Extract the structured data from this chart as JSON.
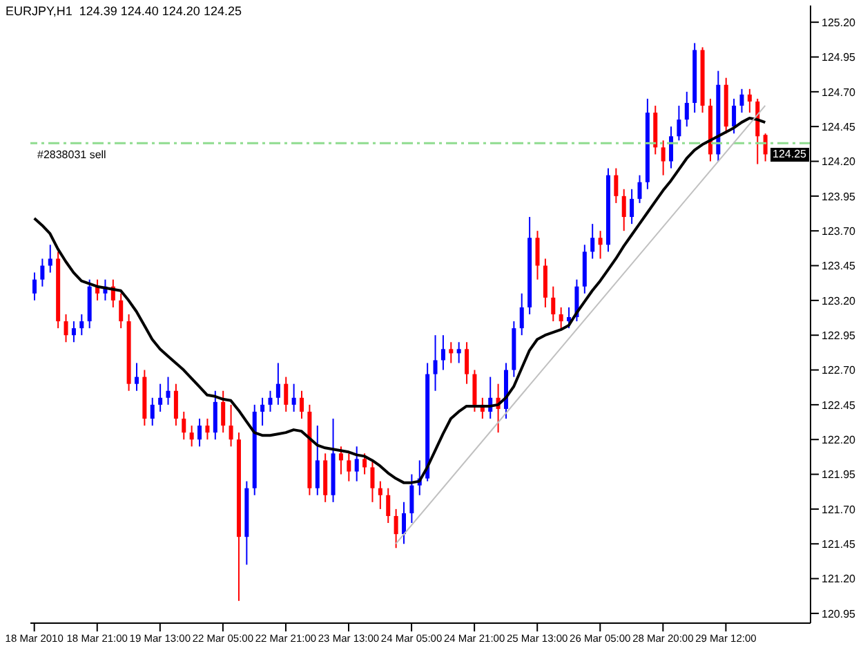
{
  "chart_data": {
    "type": "candlestick",
    "title": "EURJPY,H1  124.39 124.40 124.20 124.25",
    "categories": [
      "18 Mar 2010",
      null,
      null,
      null,
      null,
      null,
      null,
      null,
      "18 Mar 21:00",
      null,
      null,
      null,
      null,
      null,
      null,
      null,
      "19 Mar 13:00",
      null,
      null,
      null,
      null,
      null,
      null,
      null,
      "22 Mar 05:00",
      null,
      null,
      null,
      null,
      null,
      null,
      null,
      "22 Mar 21:00",
      null,
      null,
      null,
      null,
      null,
      null,
      null,
      "23 Mar 13:00",
      null,
      null,
      null,
      null,
      null,
      null,
      null,
      "24 Mar 05:00",
      null,
      null,
      null,
      null,
      null,
      null,
      null,
      "24 Mar 21:00",
      null,
      null,
      null,
      null,
      null,
      null,
      null,
      "25 Mar 13:00",
      null,
      null,
      null,
      null,
      null,
      null,
      null,
      "26 Mar 05:00",
      null,
      null,
      null,
      null,
      null,
      null,
      null,
      "28 Mar 20:00",
      null,
      null,
      null,
      null,
      null,
      null,
      null,
      "29 Mar 12:00",
      null,
      null,
      null,
      null,
      null
    ],
    "ohlc": [
      [
        123.25,
        123.4,
        123.2,
        123.35
      ],
      [
        123.35,
        123.5,
        123.3,
        123.45
      ],
      [
        123.45,
        123.6,
        123.4,
        123.5
      ],
      [
        123.5,
        123.55,
        123.0,
        123.05
      ],
      [
        123.05,
        123.1,
        122.9,
        122.95
      ],
      [
        122.95,
        123.05,
        122.9,
        123.0
      ],
      [
        123.0,
        123.1,
        122.95,
        123.05
      ],
      [
        123.05,
        123.35,
        123.0,
        123.3
      ],
      [
        123.3,
        123.35,
        123.2,
        123.25
      ],
      [
        123.25,
        123.35,
        123.2,
        123.3
      ],
      [
        123.3,
        123.35,
        123.15,
        123.2
      ],
      [
        123.2,
        123.25,
        123.0,
        123.05
      ],
      [
        123.05,
        123.1,
        122.55,
        122.6
      ],
      [
        122.6,
        122.75,
        122.55,
        122.65
      ],
      [
        122.65,
        122.7,
        122.3,
        122.35
      ],
      [
        122.35,
        122.5,
        122.3,
        122.45
      ],
      [
        122.45,
        122.6,
        122.4,
        122.5
      ],
      [
        122.5,
        122.65,
        122.45,
        122.55
      ],
      [
        122.55,
        122.6,
        122.3,
        122.35
      ],
      [
        122.35,
        122.4,
        122.2,
        122.25
      ],
      [
        122.25,
        122.3,
        122.15,
        122.2
      ],
      [
        122.2,
        122.35,
        122.15,
        122.3
      ],
      [
        122.3,
        122.35,
        122.2,
        122.25
      ],
      [
        122.25,
        122.55,
        122.2,
        122.47
      ],
      [
        122.47,
        122.55,
        122.25,
        122.3
      ],
      [
        122.3,
        122.45,
        122.15,
        122.2
      ],
      [
        122.2,
        122.25,
        121.04,
        121.5
      ],
      [
        121.5,
        121.9,
        121.3,
        121.85
      ],
      [
        121.85,
        122.45,
        121.8,
        122.4
      ],
      [
        122.4,
        122.5,
        122.3,
        122.45
      ],
      [
        122.45,
        122.55,
        122.4,
        122.5
      ],
      [
        122.5,
        122.75,
        122.45,
        122.6
      ],
      [
        122.6,
        122.65,
        122.4,
        122.45
      ],
      [
        122.45,
        122.6,
        122.4,
        122.5
      ],
      [
        122.5,
        122.55,
        122.35,
        122.4
      ],
      [
        122.4,
        122.45,
        121.8,
        121.85
      ],
      [
        121.85,
        122.3,
        121.8,
        122.05
      ],
      [
        122.05,
        122.1,
        121.75,
        121.8
      ],
      [
        121.8,
        122.35,
        121.75,
        122.1
      ],
      [
        122.1,
        122.15,
        121.95,
        122.05
      ],
      [
        122.05,
        122.1,
        121.9,
        121.97
      ],
      [
        121.97,
        122.15,
        121.9,
        122.06
      ],
      [
        122.06,
        122.1,
        121.95,
        122.0
      ],
      [
        122.0,
        122.05,
        121.75,
        121.85
      ],
      [
        121.85,
        121.9,
        121.7,
        121.8
      ],
      [
        121.8,
        121.85,
        121.6,
        121.65
      ],
      [
        121.65,
        121.7,
        121.42,
        121.52
      ],
      [
        121.52,
        121.75,
        121.45,
        121.67
      ],
      [
        121.67,
        121.95,
        121.6,
        121.87
      ],
      [
        121.87,
        122.05,
        121.8,
        121.92
      ],
      [
        121.92,
        122.75,
        121.9,
        122.67
      ],
      [
        122.67,
        122.95,
        122.55,
        122.77
      ],
      [
        122.77,
        122.95,
        122.7,
        122.85
      ],
      [
        122.85,
        122.9,
        122.75,
        122.82
      ],
      [
        122.82,
        122.9,
        122.75,
        122.85
      ],
      [
        122.85,
        122.9,
        122.6,
        122.67
      ],
      [
        122.67,
        122.7,
        122.4,
        122.45
      ],
      [
        122.45,
        122.5,
        122.35,
        122.4
      ],
      [
        122.4,
        122.65,
        122.35,
        122.5
      ],
      [
        122.5,
        122.6,
        122.25,
        122.42
      ],
      [
        122.42,
        122.75,
        122.35,
        122.7
      ],
      [
        122.7,
        123.05,
        122.65,
        123.0
      ],
      [
        123.0,
        123.25,
        122.95,
        123.15
      ],
      [
        123.15,
        123.8,
        123.1,
        123.65
      ],
      [
        123.65,
        123.7,
        123.35,
        123.45
      ],
      [
        123.45,
        123.5,
        123.15,
        123.22
      ],
      [
        123.22,
        123.3,
        123.05,
        123.1
      ],
      [
        123.1,
        123.15,
        123.0,
        123.05
      ],
      [
        123.05,
        123.15,
        123.0,
        123.08
      ],
      [
        123.08,
        123.35,
        123.05,
        123.3
      ],
      [
        123.3,
        123.6,
        123.25,
        123.55
      ],
      [
        123.55,
        123.75,
        123.5,
        123.65
      ],
      [
        123.65,
        123.7,
        123.5,
        123.6
      ],
      [
        123.6,
        124.15,
        123.55,
        124.1
      ],
      [
        124.1,
        124.15,
        123.9,
        123.95
      ],
      [
        123.95,
        124.0,
        123.7,
        123.8
      ],
      [
        123.8,
        124.0,
        123.75,
        123.93
      ],
      [
        123.93,
        124.1,
        123.9,
        124.05
      ],
      [
        124.05,
        124.65,
        124.0,
        124.55
      ],
      [
        124.55,
        124.6,
        124.25,
        124.3
      ],
      [
        124.3,
        124.35,
        124.1,
        124.2
      ],
      [
        124.2,
        124.45,
        124.15,
        124.38
      ],
      [
        124.38,
        124.6,
        124.35,
        124.5
      ],
      [
        124.5,
        124.7,
        124.45,
        124.62
      ],
      [
        124.62,
        125.05,
        124.55,
        125.0
      ],
      [
        125.0,
        125.02,
        124.55,
        124.6
      ],
      [
        124.6,
        124.65,
        124.2,
        124.25
      ],
      [
        124.25,
        124.85,
        124.2,
        124.75
      ],
      [
        124.75,
        124.8,
        124.4,
        124.45
      ],
      [
        124.45,
        124.65,
        124.4,
        124.6
      ],
      [
        124.6,
        124.72,
        124.55,
        124.68
      ],
      [
        124.68,
        124.72,
        124.55,
        124.63
      ],
      [
        124.63,
        124.65,
        124.18,
        124.38
      ],
      [
        124.39,
        124.4,
        124.2,
        124.25
      ]
    ],
    "colors": [
      "#0000ff",
      "#0000ff",
      "#0000ff",
      "#ff0000",
      "#ff0000",
      "#0000ff",
      "#0000ff",
      "#0000ff",
      "#ff0000",
      "#0000ff",
      "#ff0000",
      "#ff0000",
      "#ff0000",
      "#0000ff",
      "#ff0000",
      "#0000ff",
      "#0000ff",
      "#0000ff",
      "#ff0000",
      "#ff0000",
      "#ff0000",
      "#0000ff",
      "#ff0000",
      "#0000ff",
      "#ff0000",
      "#ff0000",
      "#ff0000",
      "#0000ff",
      "#0000ff",
      "#0000ff",
      "#0000ff",
      "#0000ff",
      "#ff0000",
      "#0000ff",
      "#ff0000",
      "#ff0000",
      "#0000ff",
      "#ff0000",
      "#0000ff",
      "#ff0000",
      "#ff0000",
      "#0000ff",
      "#ff0000",
      "#ff0000",
      "#ff0000",
      "#ff0000",
      "#ff0000",
      "#0000ff",
      "#0000ff",
      "#0000ff",
      "#0000ff",
      "#0000ff",
      "#0000ff",
      "#ff0000",
      "#0000ff",
      "#ff0000",
      "#ff0000",
      "#ff0000",
      "#0000ff",
      "#ff0000",
      "#0000ff",
      "#0000ff",
      "#0000ff",
      "#0000ff",
      "#ff0000",
      "#ff0000",
      "#ff0000",
      "#ff0000",
      "#0000ff",
      "#0000ff",
      "#0000ff",
      "#0000ff",
      "#ff0000",
      "#0000ff",
      "#ff0000",
      "#ff0000",
      "#0000ff",
      "#0000ff",
      "#0000ff",
      "#ff0000",
      "#ff0000",
      "#0000ff",
      "#0000ff",
      "#0000ff",
      "#0000ff",
      "#ff0000",
      "#ff0000",
      "#0000ff",
      "#ff0000",
      "#0000ff",
      "#0000ff",
      "#ff0000",
      "#ff0000",
      "#ff0000"
    ],
    "series": [
      {
        "type": "line",
        "color": "#000000",
        "values": [
          123.79,
          123.74,
          123.68,
          123.57,
          123.48,
          123.4,
          123.34,
          123.32,
          123.3,
          123.29,
          123.28,
          123.27,
          123.2,
          123.12,
          123.02,
          122.92,
          122.85,
          122.8,
          122.75,
          122.7,
          122.64,
          122.58,
          122.52,
          122.51,
          122.49,
          122.48,
          122.41,
          122.33,
          122.25,
          122.23,
          122.23,
          122.24,
          122.25,
          122.27,
          122.26,
          122.21,
          122.16,
          122.14,
          122.13,
          122.12,
          122.11,
          122.09,
          122.08,
          122.05,
          122.01,
          121.96,
          121.92,
          121.89,
          121.89,
          121.9,
          122.0,
          122.12,
          122.24,
          122.35,
          122.4,
          122.44,
          122.44,
          122.44,
          122.44,
          122.45,
          122.5,
          122.58,
          122.71,
          122.84,
          122.92,
          122.95,
          122.97,
          122.99,
          123.02,
          123.11,
          123.19,
          123.27,
          123.34,
          123.42,
          123.5,
          123.59,
          123.67,
          123.75,
          123.83,
          123.91,
          123.99,
          124.06,
          124.14,
          124.22,
          124.28,
          124.32,
          124.35,
          124.38,
          124.41,
          124.44,
          124.48,
          124.51,
          124.5,
          124.48
        ]
      },
      {
        "type": "line",
        "color": "#c0c0c0",
        "values": [
          null,
          null,
          null,
          null,
          null,
          null,
          null,
          null,
          null,
          null,
          null,
          null,
          null,
          null,
          null,
          null,
          null,
          null,
          null,
          null,
          null,
          null,
          null,
          null,
          null,
          null,
          null,
          null,
          null,
          null,
          null,
          null,
          null,
          null,
          null,
          null,
          null,
          null,
          null,
          null,
          null,
          null,
          null,
          null,
          null,
          null,
          121.45,
          null,
          null,
          null,
          null,
          null,
          null,
          null,
          null,
          null,
          null,
          null,
          null,
          null,
          null,
          null,
          null,
          null,
          null,
          null,
          null,
          null,
          null,
          null,
          null,
          null,
          null,
          null,
          null,
          null,
          null,
          null,
          null,
          null,
          null,
          null,
          null,
          null,
          null,
          null,
          null,
          null,
          null,
          null,
          null,
          null,
          null,
          124.6
        ]
      }
    ],
    "ylim": [
      120.88,
      125.32
    ],
    "yticks": [
      {
        "value": 120.95,
        "label": "120.95"
      },
      {
        "value": 121.2,
        "label": "121.20"
      },
      {
        "value": 121.45,
        "label": "121.45"
      },
      {
        "value": 121.7,
        "label": "121.70"
      },
      {
        "value": 121.95,
        "label": "121.95"
      },
      {
        "value": 122.2,
        "label": "122.20"
      },
      {
        "value": 122.45,
        "label": "122.45"
      },
      {
        "value": 122.7,
        "label": "122.70"
      },
      {
        "value": 122.95,
        "label": "122.95"
      },
      {
        "value": 123.2,
        "label": "123.20"
      },
      {
        "value": 123.45,
        "label": "123.45"
      },
      {
        "value": 123.7,
        "label": "123.70"
      },
      {
        "value": 123.95,
        "label": "123.95"
      },
      {
        "value": 124.2,
        "label": "124.20"
      },
      {
        "value": 124.45,
        "label": "124.45"
      },
      {
        "value": 124.7,
        "label": "124.70"
      },
      {
        "value": 124.95,
        "label": "124.95"
      },
      {
        "value": 125.2,
        "label": "125.20"
      }
    ],
    "ref_lines": [
      {
        "axis": "y",
        "value": 124.33,
        "label": "#2838031 sell",
        "color": "#8fdc8f",
        "line_style": "dashed"
      }
    ],
    "annotations": [
      {
        "text": "124.25",
        "y": 124.25
      }
    ]
  }
}
